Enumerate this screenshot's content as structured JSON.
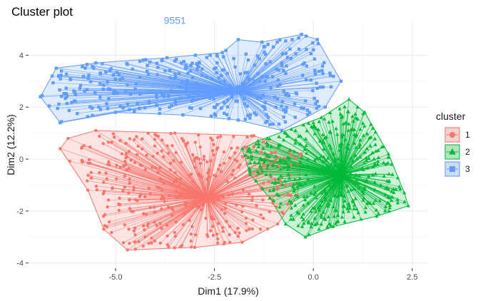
{
  "chart_data": {
    "type": "scatter",
    "title": "Cluster plot",
    "xlabel": "Dim1 (17.9%)",
    "ylabel": "Dim2 (12.2%)",
    "xlim": [
      -7.2,
      2.9
    ],
    "ylim": [
      -4.2,
      5.3
    ],
    "x_ticks": [
      -5.0,
      -2.5,
      0.0,
      2.5
    ],
    "x_tick_labels": [
      "-5.0",
      "-2.5",
      "0.0",
      "2.5"
    ],
    "y_ticks": [
      -4,
      -2,
      0,
      2,
      4
    ],
    "y_tick_labels": [
      "-4",
      "-2",
      "0",
      "2",
      "4"
    ],
    "grid": true,
    "legend": {
      "title": "cluster",
      "position": "right",
      "entries": [
        "1",
        "2",
        "3"
      ]
    },
    "annotation": {
      "text": "9551",
      "x": -3.5,
      "y": 5.2,
      "series": "3"
    },
    "series": [
      {
        "name": "1",
        "color": "#F8766D",
        "marker": "circle",
        "centroid": [
          -2.7,
          -1.5
        ],
        "hull": [
          [
            -6.2,
            0.8
          ],
          [
            -5.5,
            1.1
          ],
          [
            -3.5,
            1.0
          ],
          [
            -1.5,
            0.9
          ],
          [
            -0.3,
            0.2
          ],
          [
            -0.4,
            -1.4
          ],
          [
            -0.9,
            -2.5
          ],
          [
            -1.8,
            -3.2
          ],
          [
            -3.0,
            -3.4
          ],
          [
            -4.7,
            -3.5
          ],
          [
            -5.3,
            -2.7
          ],
          [
            -5.7,
            -1.2
          ],
          [
            -6.4,
            0.4
          ]
        ],
        "count": 380
      },
      {
        "name": "2",
        "color": "#00BA38",
        "marker": "triangle",
        "centroid": [
          0.7,
          -0.6
        ],
        "hull": [
          [
            -1.8,
            0.4
          ],
          [
            -1.4,
            0.7
          ],
          [
            0.2,
            1.6
          ],
          [
            0.9,
            2.3
          ],
          [
            1.3,
            1.8
          ],
          [
            1.9,
            0.2
          ],
          [
            2.3,
            -1.3
          ],
          [
            2.4,
            -1.8
          ],
          [
            1.6,
            -2.2
          ],
          [
            0.5,
            -2.6
          ],
          [
            -0.2,
            -3.0
          ],
          [
            -0.7,
            -2.5
          ],
          [
            -1.1,
            -1.5
          ],
          [
            -1.6,
            -0.6
          ]
        ],
        "count": 450
      },
      {
        "name": "3",
        "color": "#619CFF",
        "marker": "square",
        "centroid": [
          -1.9,
          2.6
        ],
        "hull": [
          [
            -6.5,
            3.5
          ],
          [
            -5.5,
            3.7
          ],
          [
            -3.7,
            3.9
          ],
          [
            -2.3,
            4.1
          ],
          [
            -1.9,
            4.6
          ],
          [
            -1.3,
            4.5
          ],
          [
            -0.3,
            4.8
          ],
          [
            0.1,
            4.6
          ],
          [
            0.7,
            3.0
          ],
          [
            0.3,
            2.0
          ],
          [
            -0.8,
            1.1
          ],
          [
            -1.9,
            1.5
          ],
          [
            -3.3,
            1.7
          ],
          [
            -5.0,
            1.8
          ],
          [
            -6.4,
            1.4
          ],
          [
            -6.9,
            2.4
          ]
        ],
        "count": 360
      }
    ]
  },
  "colors": {
    "panel_bg": "#FFFFFF",
    "grid_major": "#EBEBEB",
    "grid_minor": "#F5F5F5",
    "legend_key_bg": "#F2F2F2"
  }
}
